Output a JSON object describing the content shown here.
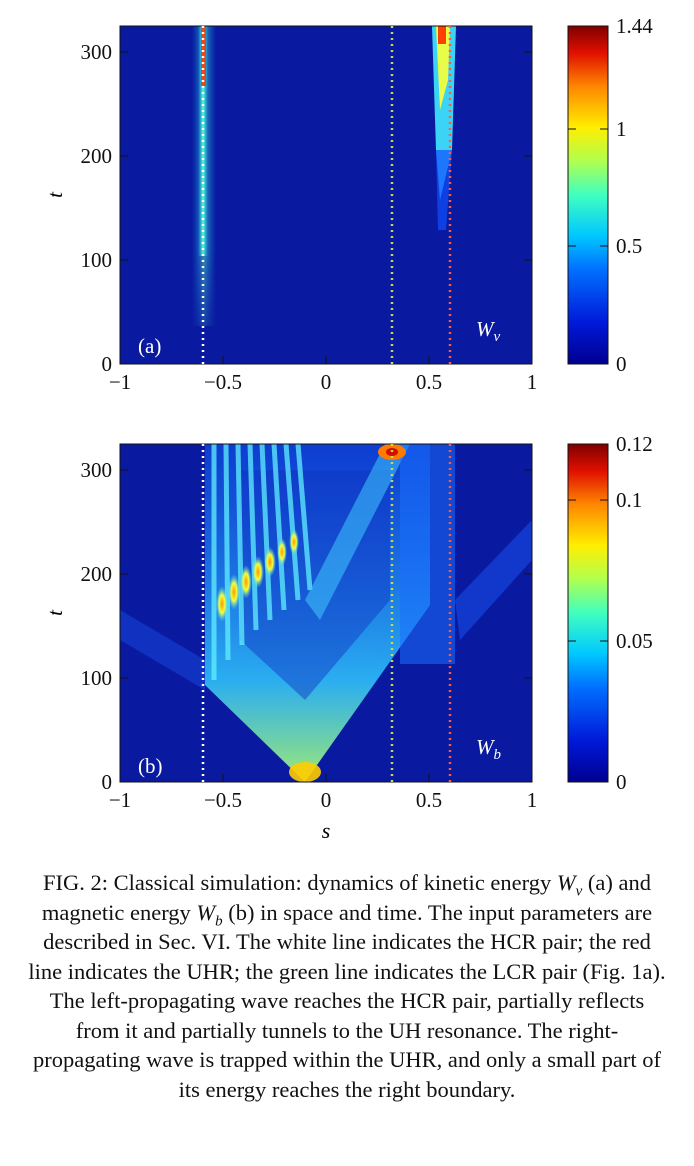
{
  "figure": {
    "panels": [
      {
        "label": "(a)",
        "energy_label_symbol": "W",
        "energy_label_subscript": "v",
        "y_axis_label": "t",
        "x_axis_label": "",
        "colorbar_ticks": [
          "1.44",
          "1",
          "0.5",
          "0"
        ],
        "colorbar_max": 1.44
      },
      {
        "label": "(b)",
        "energy_label_symbol": "W",
        "energy_label_subscript": "b",
        "y_axis_label": "t",
        "x_axis_label": "s",
        "colorbar_ticks": [
          "0.12",
          "0.1",
          "0.05",
          "0"
        ],
        "colorbar_max": 0.12
      }
    ],
    "x_ticks": [
      "−1",
      "−0.5",
      "0",
      "0.5",
      "1"
    ],
    "y_ticks": [
      "0",
      "100",
      "200",
      "300"
    ],
    "reference_lines": {
      "hcr_pair": {
        "s": -0.6,
        "color": "#ffffff"
      },
      "lcr_pair": {
        "s": 0.32,
        "color": "#c8d850"
      },
      "uhr": {
        "s": 0.6,
        "color": "#ff5a3c"
      }
    },
    "colors": {
      "background": "#0a1aa0",
      "colormap": [
        "#000090",
        "#0010d0",
        "#0060ff",
        "#00c8ff",
        "#40ffb0",
        "#c0ff40",
        "#ffe000",
        "#ff6000",
        "#d00000",
        "#800000"
      ]
    }
  },
  "chart_data": [
    {
      "type": "heatmap",
      "panel": "(a)",
      "title": "",
      "xlabel": "",
      "ylabel": "t",
      "xlim": [
        -1,
        1
      ],
      "ylim": [
        0,
        325
      ],
      "colorbar_range": [
        0,
        1.44
      ],
      "colorbar_ticks": [
        0,
        0.5,
        1,
        1.44
      ],
      "legend_text": "Wv",
      "vertical_lines": [
        {
          "s": -0.6,
          "color": "white",
          "style": "dotted"
        },
        {
          "s": 0.32,
          "color": "green",
          "style": "dotted"
        },
        {
          "s": 0.6,
          "color": "red",
          "style": "dotted"
        }
      ]
    },
    {
      "type": "heatmap",
      "panel": "(b)",
      "title": "",
      "xlabel": "s",
      "ylabel": "t",
      "xlim": [
        -1,
        1
      ],
      "ylim": [
        0,
        325
      ],
      "colorbar_range": [
        0,
        0.12
      ],
      "colorbar_ticks": [
        0,
        0.05,
        0.1,
        0.12
      ],
      "legend_text": "Wb",
      "vertical_lines": [
        {
          "s": -0.6,
          "color": "white",
          "style": "dotted"
        },
        {
          "s": 0.32,
          "color": "green",
          "style": "dotted"
        },
        {
          "s": 0.6,
          "color": "red",
          "style": "dotted"
        }
      ]
    }
  ],
  "caption": {
    "part1": "FIG. 2: Classical simulation: dynamics of kinetic energy ",
    "sym1": "W",
    "sub1": "v",
    "part2": " (a) and magnetic energy ",
    "sym2": "W",
    "sub2": "b",
    "part3": " (b) in space and time. The input parameters are described in Sec. VI. The white line indicates the HCR pair; the red line indicates the UHR; the green line indicates the LCR pair (Fig. 1a). The left-propagating wave reaches the HCR pair, partially reflects from it and partially tunnels to the UH resonance. The right-propagating wave is trapped within the UHR, and only a small part of its energy reaches the right boundary."
  }
}
